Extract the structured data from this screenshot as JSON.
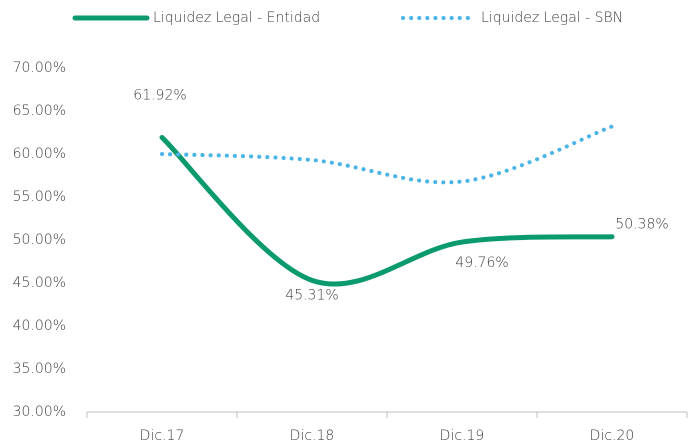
{
  "chart_data": {
    "type": "line",
    "categories": [
      "Dic.17",
      "Dic.18",
      "Dic.19",
      "Dic.20"
    ],
    "series": [
      {
        "name": "Liquidez Legal - Entidad",
        "color": "#0a9a6e",
        "values": [
          61.92,
          45.31,
          49.76,
          50.38
        ],
        "value_labels": [
          "61.92%",
          "45.31%",
          "49.76%",
          "50.38%"
        ],
        "style": "solid"
      },
      {
        "name": "Liquidez Legal - SBN",
        "color": "#4ab4e6",
        "values": [
          60.0,
          59.3,
          56.8,
          63.2
        ],
        "style": "dotted"
      }
    ],
    "ylim": [
      30,
      70
    ],
    "yticks": [
      {
        "value": 30,
        "label": "30.00%"
      },
      {
        "value": 35,
        "label": "35.00%"
      },
      {
        "value": 40,
        "label": "40.00%"
      },
      {
        "value": 45,
        "label": "45.00%"
      },
      {
        "value": 50,
        "label": "50.00%"
      },
      {
        "value": 55,
        "label": "55.00%"
      },
      {
        "value": 60,
        "label": "60.00%"
      },
      {
        "value": 65,
        "label": "65.00%"
      },
      {
        "value": 70,
        "label": "70.00%"
      }
    ],
    "grid": false,
    "legend": "top"
  }
}
